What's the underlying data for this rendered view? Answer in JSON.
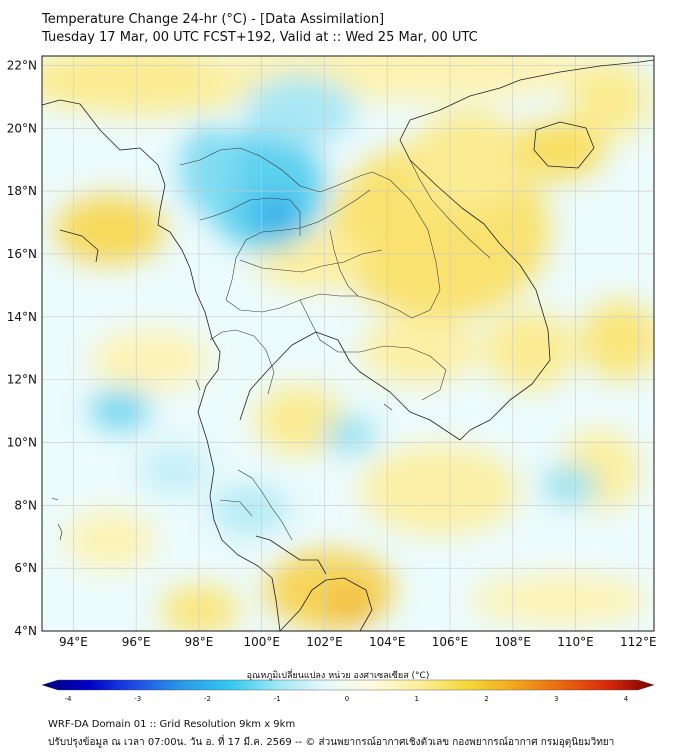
{
  "title": {
    "line1": "Temperature Change 24-hr (°C) - [Data Assimilation]",
    "line2": "Tuesday 17 Mar, 00 UTC FCST+192, Valid at :: Wed 25 Mar, 00 UTC"
  },
  "map": {
    "lat_labels": [
      "22°N",
      "20°N",
      "18°N",
      "16°N",
      "14°N",
      "12°N",
      "10°N",
      "8°N",
      "6°N",
      "4°N"
    ],
    "lat_values": [
      22,
      20,
      18,
      16,
      14,
      12,
      10,
      8,
      6,
      4
    ],
    "lon_labels": [
      "94°E",
      "96°E",
      "98°E",
      "100°E",
      "102°E",
      "104°E",
      "106°E",
      "108°E",
      "110°E",
      "112°E"
    ],
    "lon_values": [
      94,
      96,
      98,
      100,
      102,
      104,
      106,
      108,
      110,
      112
    ],
    "lat_range": [
      4,
      22.3
    ],
    "lon_range": [
      93,
      112.5
    ]
  },
  "colorbar": {
    "label": "อุณหภูมิเปลี่ยนแปลง หน่วย องศาเซลเซียส (°C)",
    "ticks": [
      "-4",
      "-3",
      "-2",
      "-1",
      "0",
      "1",
      "2",
      "3",
      "4"
    ],
    "tick_values": [
      -4,
      -3,
      -2,
      -1,
      0,
      1,
      2,
      3,
      4
    ],
    "colors": [
      "#00007a",
      "#0000c8",
      "#1f4fe6",
      "#2a9be8",
      "#35c8ee",
      "#9de8f6",
      "#e6f8fb",
      "#fffbe0",
      "#fcee9c",
      "#f5d93a",
      "#f3a820",
      "#ea6a10",
      "#d82a0a",
      "#7a0000"
    ]
  },
  "footer": {
    "line1": "WRF-DA Domain 01 :: Grid Resolution 9km x 9km",
    "line2": "ปรับปรุงข้อมูล ณ เวลา 07:00น. วัน อ. ที่ 17 มี.ค. 2569 -- © ส่วนพยากรณ์อากาศเชิงตัวเลข กองพยากรณ์อากาศ กรมอุตุนิยมวิทยา"
  }
}
